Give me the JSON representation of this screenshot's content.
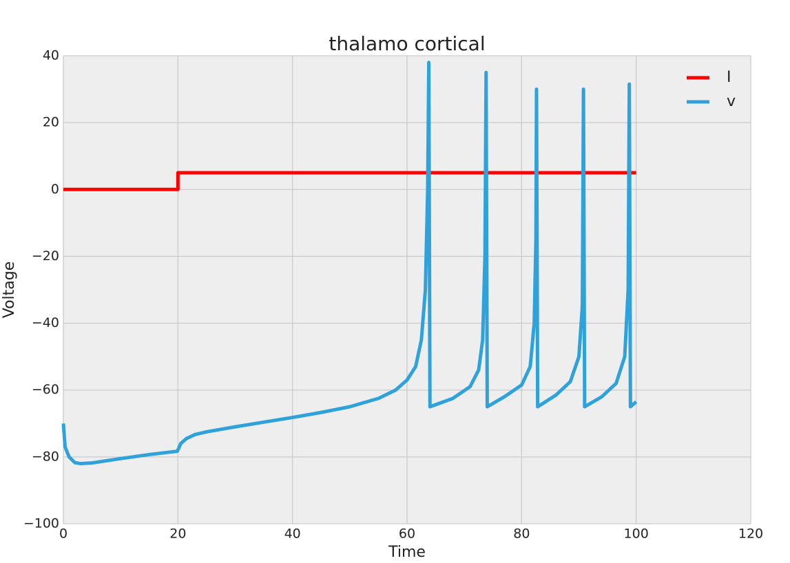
{
  "chart_data": {
    "type": "line",
    "title": "thalamo cortical",
    "xlabel": "Time",
    "ylabel": "Voltage",
    "xlim": [
      0,
      120
    ],
    "xticks": [
      0,
      20,
      40,
      60,
      80,
      100,
      120
    ],
    "ylim": [
      -100,
      40
    ],
    "yticks": [
      {
        "value": -100,
        "label": "−100"
      },
      {
        "value": -80,
        "label": "−80"
      },
      {
        "value": -60,
        "label": "−60"
      },
      {
        "value": -40,
        "label": "−40"
      },
      {
        "value": -20,
        "label": "−20"
      },
      0,
      20,
      40
    ],
    "grid": true,
    "legend": "upper right",
    "series": [
      {
        "name": "I",
        "color": "#ff0000",
        "x": [
          0,
          20,
          20,
          100
        ],
        "values": [
          0,
          0,
          5,
          5
        ]
      },
      {
        "name": "v",
        "color": "#30a2da",
        "x": [
          0,
          0.3,
          1,
          2,
          3,
          5,
          10,
          15,
          19.9,
          20.5,
          21.5,
          23,
          25,
          30,
          35,
          40,
          45,
          50,
          55,
          58,
          60,
          61.5,
          62.5,
          63.2,
          63.6,
          63.8,
          64,
          68,
          71,
          72.5,
          73.2,
          73.6,
          73.8,
          74,
          77,
          80,
          81.5,
          82.2,
          82.5,
          82.6,
          82.8,
          86,
          88.5,
          90,
          90.6,
          90.8,
          91,
          94,
          96.5,
          98,
          98.6,
          98.8,
          99,
          100
        ],
        "values": [
          -70,
          -77,
          -80,
          -81.7,
          -82,
          -81.8,
          -80.5,
          -79.3,
          -78.3,
          -76,
          -74.5,
          -73.3,
          -72.5,
          -71,
          -69.6,
          -68.2,
          -66.7,
          -65,
          -62.5,
          -60,
          -57,
          -53,
          -45,
          -30,
          0,
          38,
          -65,
          -62.5,
          -59,
          -54,
          -45,
          -20,
          35,
          -65,
          -62,
          -58.5,
          -53,
          -40,
          -15,
          30,
          -65,
          -61.5,
          -57.5,
          -50,
          -35,
          30,
          -65,
          -62,
          -58,
          -50,
          -30,
          31.5,
          -65,
          -63.5
        ]
      }
    ]
  }
}
